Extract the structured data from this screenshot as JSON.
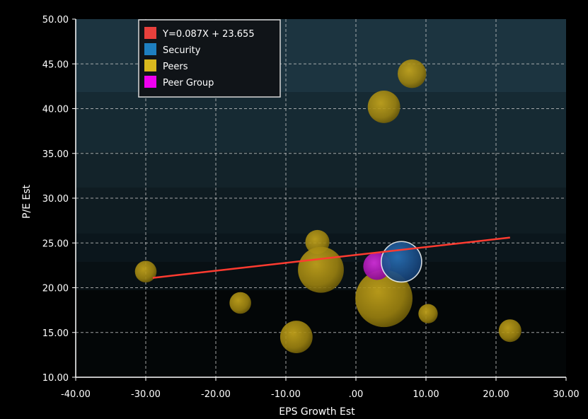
{
  "chart_data": {
    "type": "scatter",
    "xlabel": "EPS Growth Est",
    "ylabel": "P/E Est",
    "xlim": [
      -40,
      30
    ],
    "ylim": [
      10,
      50
    ],
    "x_ticks": [
      "-40.00",
      "-30.00",
      "-20.00",
      "-10.00",
      ".00",
      "10.00",
      "20.00",
      "30.00"
    ],
    "y_ticks": [
      "10.00",
      "15.00",
      "20.00",
      "25.00",
      "30.00",
      "35.00",
      "40.00",
      "45.00",
      "50.00"
    ],
    "grid": true,
    "legend_position": "top-left",
    "legend": [
      {
        "label": "Y=0.087X + 23.655",
        "color": "#e8403c"
      },
      {
        "label": "Security",
        "color": "#1e7fc0"
      },
      {
        "label": "Peers",
        "color": "#d8b81e"
      },
      {
        "label": "Peer Group",
        "color": "#f000f0"
      }
    ],
    "trendline": {
      "x": [
        -29,
        22
      ],
      "y": [
        21.1,
        25.6
      ],
      "color": "#ff3b30"
    },
    "series": [
      {
        "name": "Peers",
        "color": "#c8a818",
        "points": [
          {
            "x": -30,
            "y": 21.8,
            "size": 2
          },
          {
            "x": -16.5,
            "y": 18.3,
            "size": 2
          },
          {
            "x": -8.5,
            "y": 14.5,
            "size": 4.5
          },
          {
            "x": -5.5,
            "y": 25.1,
            "size": 2.5
          },
          {
            "x": -5,
            "y": 22,
            "size": 9
          },
          {
            "x": 4,
            "y": 18.8,
            "size": 14
          },
          {
            "x": 4,
            "y": 40.2,
            "size": 4.5
          },
          {
            "x": 8,
            "y": 43.9,
            "size": 3.5
          },
          {
            "x": 10.3,
            "y": 17.1,
            "size": 1.6
          },
          {
            "x": 22,
            "y": 15.2,
            "size": 2.2
          }
        ]
      },
      {
        "name": "Peer Group",
        "color": "#c020c8",
        "points": [
          {
            "x": 3,
            "y": 22.4,
            "size": 3.2
          }
        ]
      },
      {
        "name": "Security",
        "color": "#1e5fa8",
        "points": [
          {
            "x": 6.5,
            "y": 22.9,
            "size": 7
          }
        ]
      }
    ]
  }
}
